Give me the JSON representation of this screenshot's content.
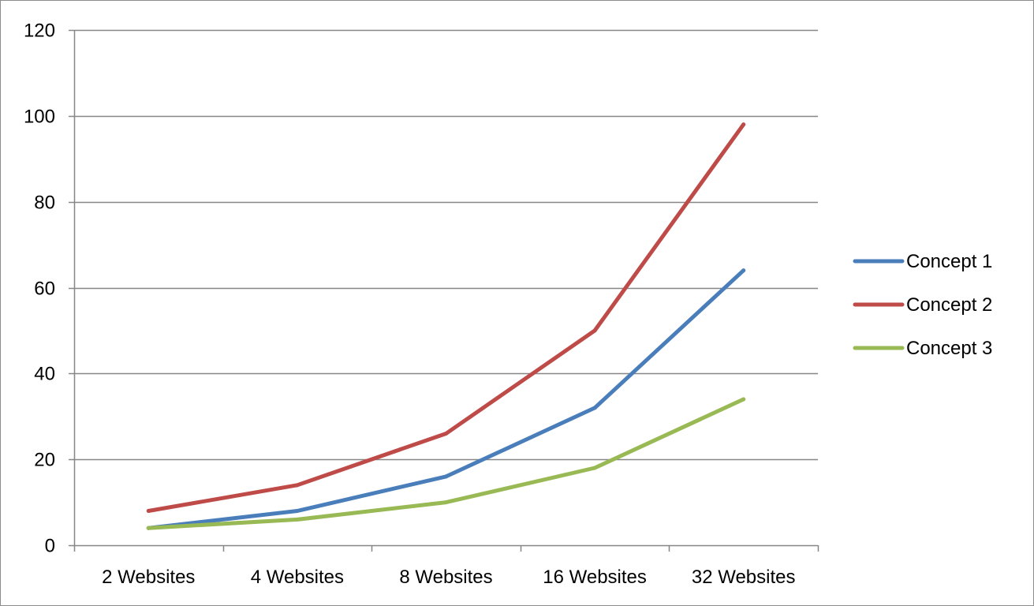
{
  "chart_data": {
    "type": "line",
    "title": "",
    "xlabel": "",
    "ylabel": "",
    "categories": [
      "2 Websites",
      "4 Websites",
      "8 Websites",
      "16 Websites",
      "32 Websites"
    ],
    "ylim": [
      0,
      120
    ],
    "yticks": [
      0,
      20,
      40,
      60,
      80,
      100,
      120
    ],
    "grid": true,
    "legend_position": "right",
    "series": [
      {
        "name": "Concept  1",
        "color": "#4a7ebb",
        "values": [
          4,
          8,
          16,
          32,
          64
        ]
      },
      {
        "name": "Concept  2",
        "color": "#be4b48",
        "values": [
          8,
          14,
          26,
          50,
          98
        ]
      },
      {
        "name": "Concept  3",
        "color": "#98b954",
        "values": [
          4,
          6,
          10,
          18,
          34
        ]
      }
    ]
  }
}
